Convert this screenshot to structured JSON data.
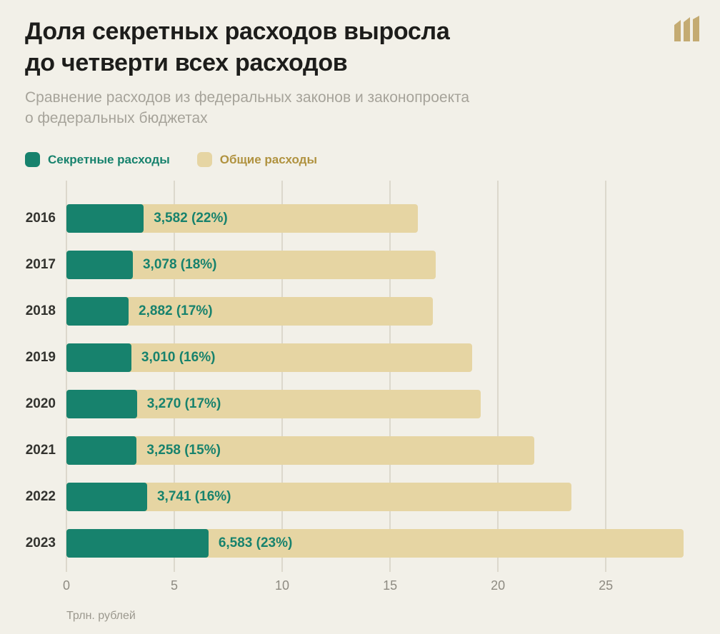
{
  "header": {
    "title_line1": "Доля секретных расходов выросла",
    "title_line2": "до четверти всех расходов",
    "subtitle_line1": "Сравнение расходов из федеральных законов и законопроекта",
    "subtitle_line2": "о федеральных бюджетах"
  },
  "logo": {
    "name": "meduza-m-logo",
    "color": "#c4ab72"
  },
  "colors": {
    "background": "#f2f0e8",
    "secret": "#17826d",
    "total": "#e6d5a3",
    "secret_text": "#17826d",
    "total_text": "#b0923f",
    "gridline": "#dcd8cc",
    "title_text": "#1d1d1b",
    "subtitle_text": "#a6a39a"
  },
  "legend": [
    {
      "label": "Секретные расходы",
      "color": "#17826d",
      "text_color": "#17826d"
    },
    {
      "label": "Общие расходы",
      "color": "#e6d5a3",
      "text_color": "#b0923f"
    }
  ],
  "chart_data": {
    "type": "bar",
    "orientation": "horizontal",
    "title": "Доля секретных расходов выросла до четверти всех расходов",
    "subtitle": "Сравнение расходов из федеральных законов и законопроекта о федеральных бюджетах",
    "categories": [
      "2016",
      "2017",
      "2018",
      "2019",
      "2020",
      "2021",
      "2022",
      "2023"
    ],
    "series": [
      {
        "name": "Секретные расходы",
        "color": "#17826d",
        "values": [
          3.582,
          3.078,
          2.882,
          3.01,
          3.27,
          3.258,
          3.741,
          6.583
        ]
      },
      {
        "name": "Общие расходы",
        "color": "#e6d5a3",
        "values": [
          16.3,
          17.1,
          17.0,
          18.8,
          19.2,
          21.7,
          23.4,
          28.6
        ]
      }
    ],
    "bar_labels": [
      "3,582 (22%)",
      "3,078 (18%)",
      "2,882 (17%)",
      "3,010 (16%)",
      "3,270 (17%)",
      "3,258 (15%)",
      "3,741 (16%)",
      "6,583 (23%)"
    ],
    "x_ticks": [
      "0",
      "5",
      "10",
      "15",
      "20",
      "25"
    ],
    "x_tick_values": [
      0,
      5,
      10,
      15,
      20,
      25
    ],
    "x_max": 29.2,
    "xlabel": "Трлн. рублей",
    "grid": "vertical",
    "legend_position": "top-left"
  }
}
